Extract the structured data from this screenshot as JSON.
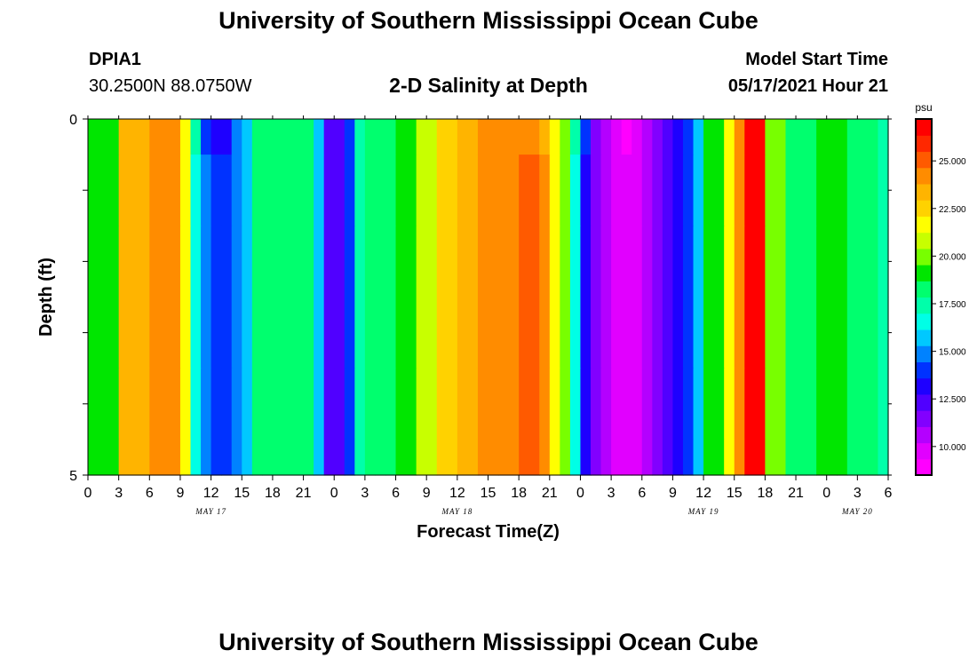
{
  "header": {
    "title": "University of Southern Mississippi Ocean Cube",
    "station_id": "DPIA1",
    "coords": "30.2500N  88.0750W",
    "chart_title": "2-D Salinity at Depth",
    "model_label": "Model Start Time",
    "model_time": "05/17/2021 Hour 21"
  },
  "footer": {
    "title": "University of Southern Mississippi Ocean Cube"
  },
  "chart_data": {
    "type": "heatmap",
    "title": "2-D Salinity at Depth",
    "xlabel": "Forecast Time(Z)",
    "ylabel": "Depth (ft)",
    "x_tick_labels": [
      "0",
      "3",
      "6",
      "9",
      "12",
      "15",
      "18",
      "21",
      "0",
      "3",
      "6",
      "9",
      "12",
      "15",
      "18",
      "21",
      "0",
      "3",
      "6",
      "9",
      "12",
      "15",
      "18",
      "21",
      "0",
      "3",
      "6"
    ],
    "date_labels": [
      "MAY 17",
      "MAY 18",
      "MAY 19",
      "MAY 20"
    ],
    "y_tick_labels": [
      "0",
      "5"
    ],
    "ylim": [
      0,
      5
    ],
    "xlim_hours": [
      0,
      78
    ],
    "colorbar": {
      "unit": "psu",
      "tick_labels": [
        "10.000",
        "12.500",
        "15.000",
        "17.500",
        "20.000",
        "22.500",
        "25.000"
      ],
      "range": [
        8.5,
        27.2
      ],
      "colors": [
        "#ff00ff",
        "#e100ff",
        "#b400ff",
        "#8200ff",
        "#5000ff",
        "#1e00ff",
        "#0032ff",
        "#0082ff",
        "#00c8ff",
        "#00ffe6",
        "#00ffaa",
        "#00ff6e",
        "#00e600",
        "#78ff00",
        "#c8ff00",
        "#ffff00",
        "#ffd200",
        "#ffb400",
        "#ff8c00",
        "#ff5a00",
        "#ff2800",
        "#ff0000"
      ]
    },
    "depth_bands_ft": [
      0,
      0.5,
      1.5,
      2.5,
      3.5,
      4.5,
      5
    ],
    "x_hours": [
      0,
      3,
      6,
      9,
      10,
      11,
      12,
      13,
      14,
      15,
      16,
      17,
      18,
      21,
      22,
      23,
      24,
      25,
      26,
      27,
      28,
      29,
      30,
      32,
      34,
      36,
      38,
      40,
      42,
      44,
      45,
      46,
      47,
      48,
      49,
      50,
      51,
      52,
      53,
      54,
      55,
      56,
      57,
      58,
      59,
      60,
      62,
      63,
      64,
      66,
      68,
      69,
      70,
      71,
      72,
      73,
      74,
      75,
      76,
      77,
      78
    ],
    "salinity_psu_by_depth_band": [
      [
        19.0,
        23.0,
        24.5,
        21.5,
        17.0,
        14.0,
        13.0,
        13.0,
        14.5,
        16.0,
        18.0,
        18.5,
        18.5,
        18.0,
        16.0,
        12.0,
        12.0,
        14.0,
        17.0,
        18.0,
        18.0,
        18.5,
        19.5,
        21.0,
        22.5,
        23.5,
        24.0,
        24.5,
        24.5,
        23.5,
        22.0,
        20.0,
        17.0,
        14.0,
        11.5,
        10.5,
        10.0,
        9.0,
        9.5,
        10.5,
        11.5,
        12.5,
        13.0,
        14.0,
        15.5,
        19.0,
        22.0,
        24.0,
        26.5,
        20.0,
        18.0,
        18.0,
        18.0,
        19.0,
        19.0,
        19.0,
        18.0,
        18.0,
        18.0,
        17.0
      ],
      [
        19.0,
        23.0,
        24.5,
        21.5,
        16.5,
        14.5,
        14.0,
        14.0,
        14.5,
        16.0,
        18.0,
        18.5,
        18.5,
        18.0,
        16.0,
        12.0,
        12.0,
        14.0,
        17.0,
        18.0,
        18.0,
        18.5,
        19.5,
        21.0,
        22.5,
        23.5,
        24.0,
        24.5,
        25.0,
        24.0,
        22.0,
        20.0,
        16.5,
        13.5,
        11.5,
        10.5,
        10.0,
        9.5,
        9.5,
        10.5,
        11.5,
        12.5,
        13.0,
        14.0,
        15.5,
        19.0,
        22.0,
        24.0,
        26.5,
        20.0,
        18.0,
        18.0,
        18.0,
        19.0,
        19.0,
        19.0,
        18.0,
        18.0,
        18.0,
        17.0
      ]
    ]
  }
}
